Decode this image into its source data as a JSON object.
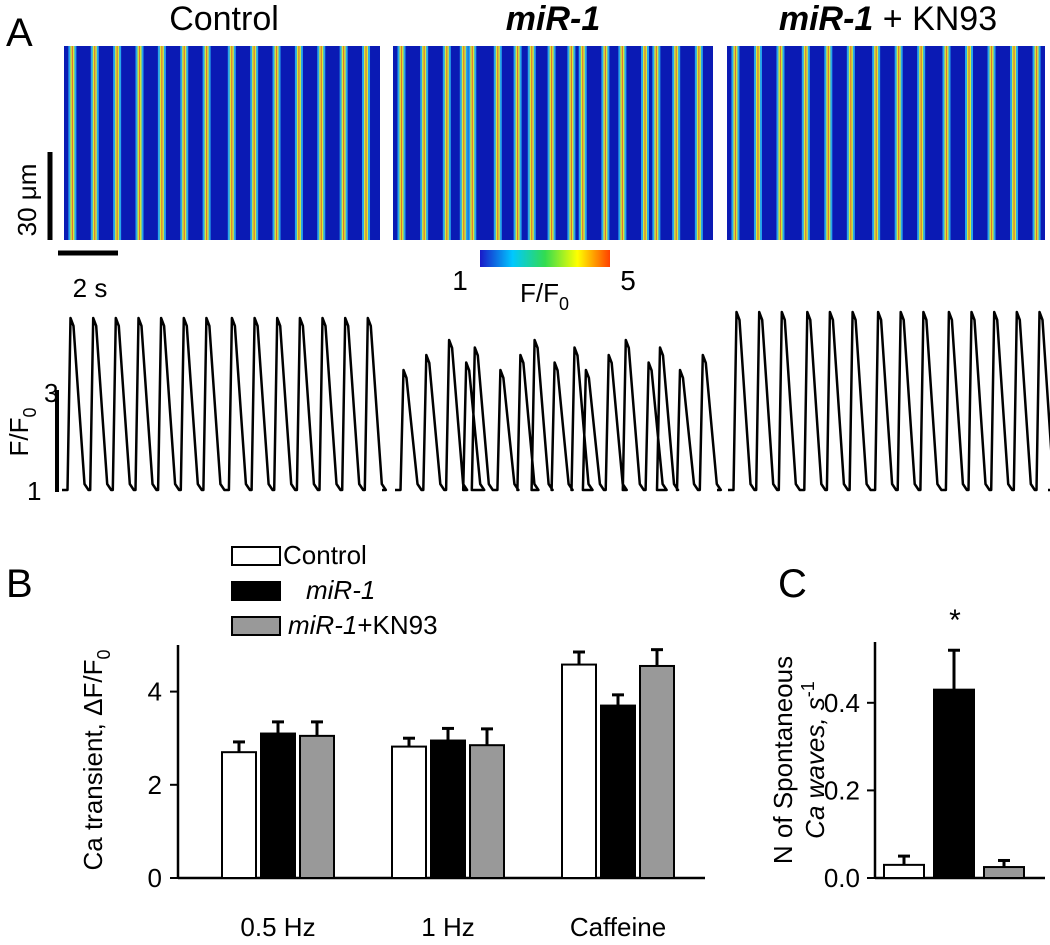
{
  "panels": {
    "A": {
      "letter": "A",
      "conditions": [
        {
          "title_main": "Control",
          "title_suffix": "",
          "italic": false,
          "spike_times_s": [
            0.3,
            1.1,
            1.9,
            2.7,
            3.5,
            4.3,
            5.1,
            6.0,
            6.8,
            7.6,
            8.4,
            9.2,
            10.0,
            10.8
          ]
        },
        {
          "title_main": "miR-1",
          "title_suffix": "",
          "italic": true,
          "spike_times_s": [
            0.3,
            1.1,
            1.9,
            2.5,
            2.8,
            3.7,
            4.4,
            4.9,
            5.6,
            6.3,
            6.7,
            7.5,
            8.1,
            8.9,
            9.3,
            10.0,
            10.8
          ]
        },
        {
          "title_main": "miR-1",
          "title_suffix": " + KN93",
          "italic": true,
          "spike_times_s": [
            0.3,
            1.1,
            1.9,
            2.8,
            3.6,
            4.4,
            5.3,
            6.1,
            6.9,
            7.8,
            8.6,
            9.4,
            10.2,
            11.0
          ]
        }
      ],
      "scale_bar_y": "30 μm",
      "scale_bar_x": "2 s",
      "colorbar": {
        "min_label": "1",
        "max_label": "5",
        "label": "F/F",
        "label_sub": "0",
        "colors": [
          "#1919c8",
          "#00c8ff",
          "#32dc50",
          "#ffff00",
          "#ff4000"
        ]
      },
      "trace_ylabel": "F/F",
      "trace_ylabel_sub": "0",
      "trace_scale_top": "3",
      "trace_scale_bottom": "1",
      "linescan_colors": {
        "background": "#0a1ab4",
        "line_edge": "#33d6ff",
        "line_core": "#d4ea3a",
        "line_peak": "#e6442a"
      }
    },
    "B": {
      "letter": "B",
      "legend": [
        {
          "label": "Control",
          "italic": false,
          "color": "#ffffff"
        },
        {
          "label": "miR-1",
          "italic": true,
          "color": "#000000"
        },
        {
          "label_italic": "miR-1",
          "label_rest": "+KN93",
          "label": "miR-1+KN93",
          "color": "#999999"
        }
      ],
      "chart_data": {
        "type": "bar",
        "categories": [
          "0.5 Hz",
          "1 Hz",
          "Caffeine"
        ],
        "series": [
          {
            "name": "Control",
            "values": [
              2.7,
              2.82,
              4.58
            ],
            "errors": [
              0.22,
              0.18,
              0.27
            ]
          },
          {
            "name": "miR-1",
            "values": [
              3.1,
              2.95,
              3.7
            ],
            "errors": [
              0.25,
              0.26,
              0.23
            ]
          },
          {
            "name": "miR-1+KN93",
            "values": [
              3.05,
              2.85,
              4.55
            ],
            "errors": [
              0.3,
              0.35,
              0.35
            ]
          }
        ],
        "ylabel": "Ca transient, ΔF/F",
        "ylabel_sub": "0",
        "yticks": [
          0,
          2,
          4
        ],
        "ylim": [
          0,
          5
        ]
      }
    },
    "C": {
      "letter": "C",
      "chart_data": {
        "type": "bar",
        "categories": [
          "Control",
          "miR-1",
          "miR-1+KN93"
        ],
        "values": [
          0.03,
          0.43,
          0.025
        ],
        "errors": [
          0.02,
          0.09,
          0.015
        ],
        "colors": [
          "#ffffff",
          "#000000",
          "#999999"
        ],
        "annotation": "*",
        "ylabel_line1": "N of Spontaneous",
        "ylabel_line2": "Ca waves, s",
        "ylabel_sup": "-1",
        "yticks": [
          "0.0",
          "0.2",
          "0.4"
        ],
        "ylim": [
          0,
          0.55
        ]
      }
    }
  }
}
